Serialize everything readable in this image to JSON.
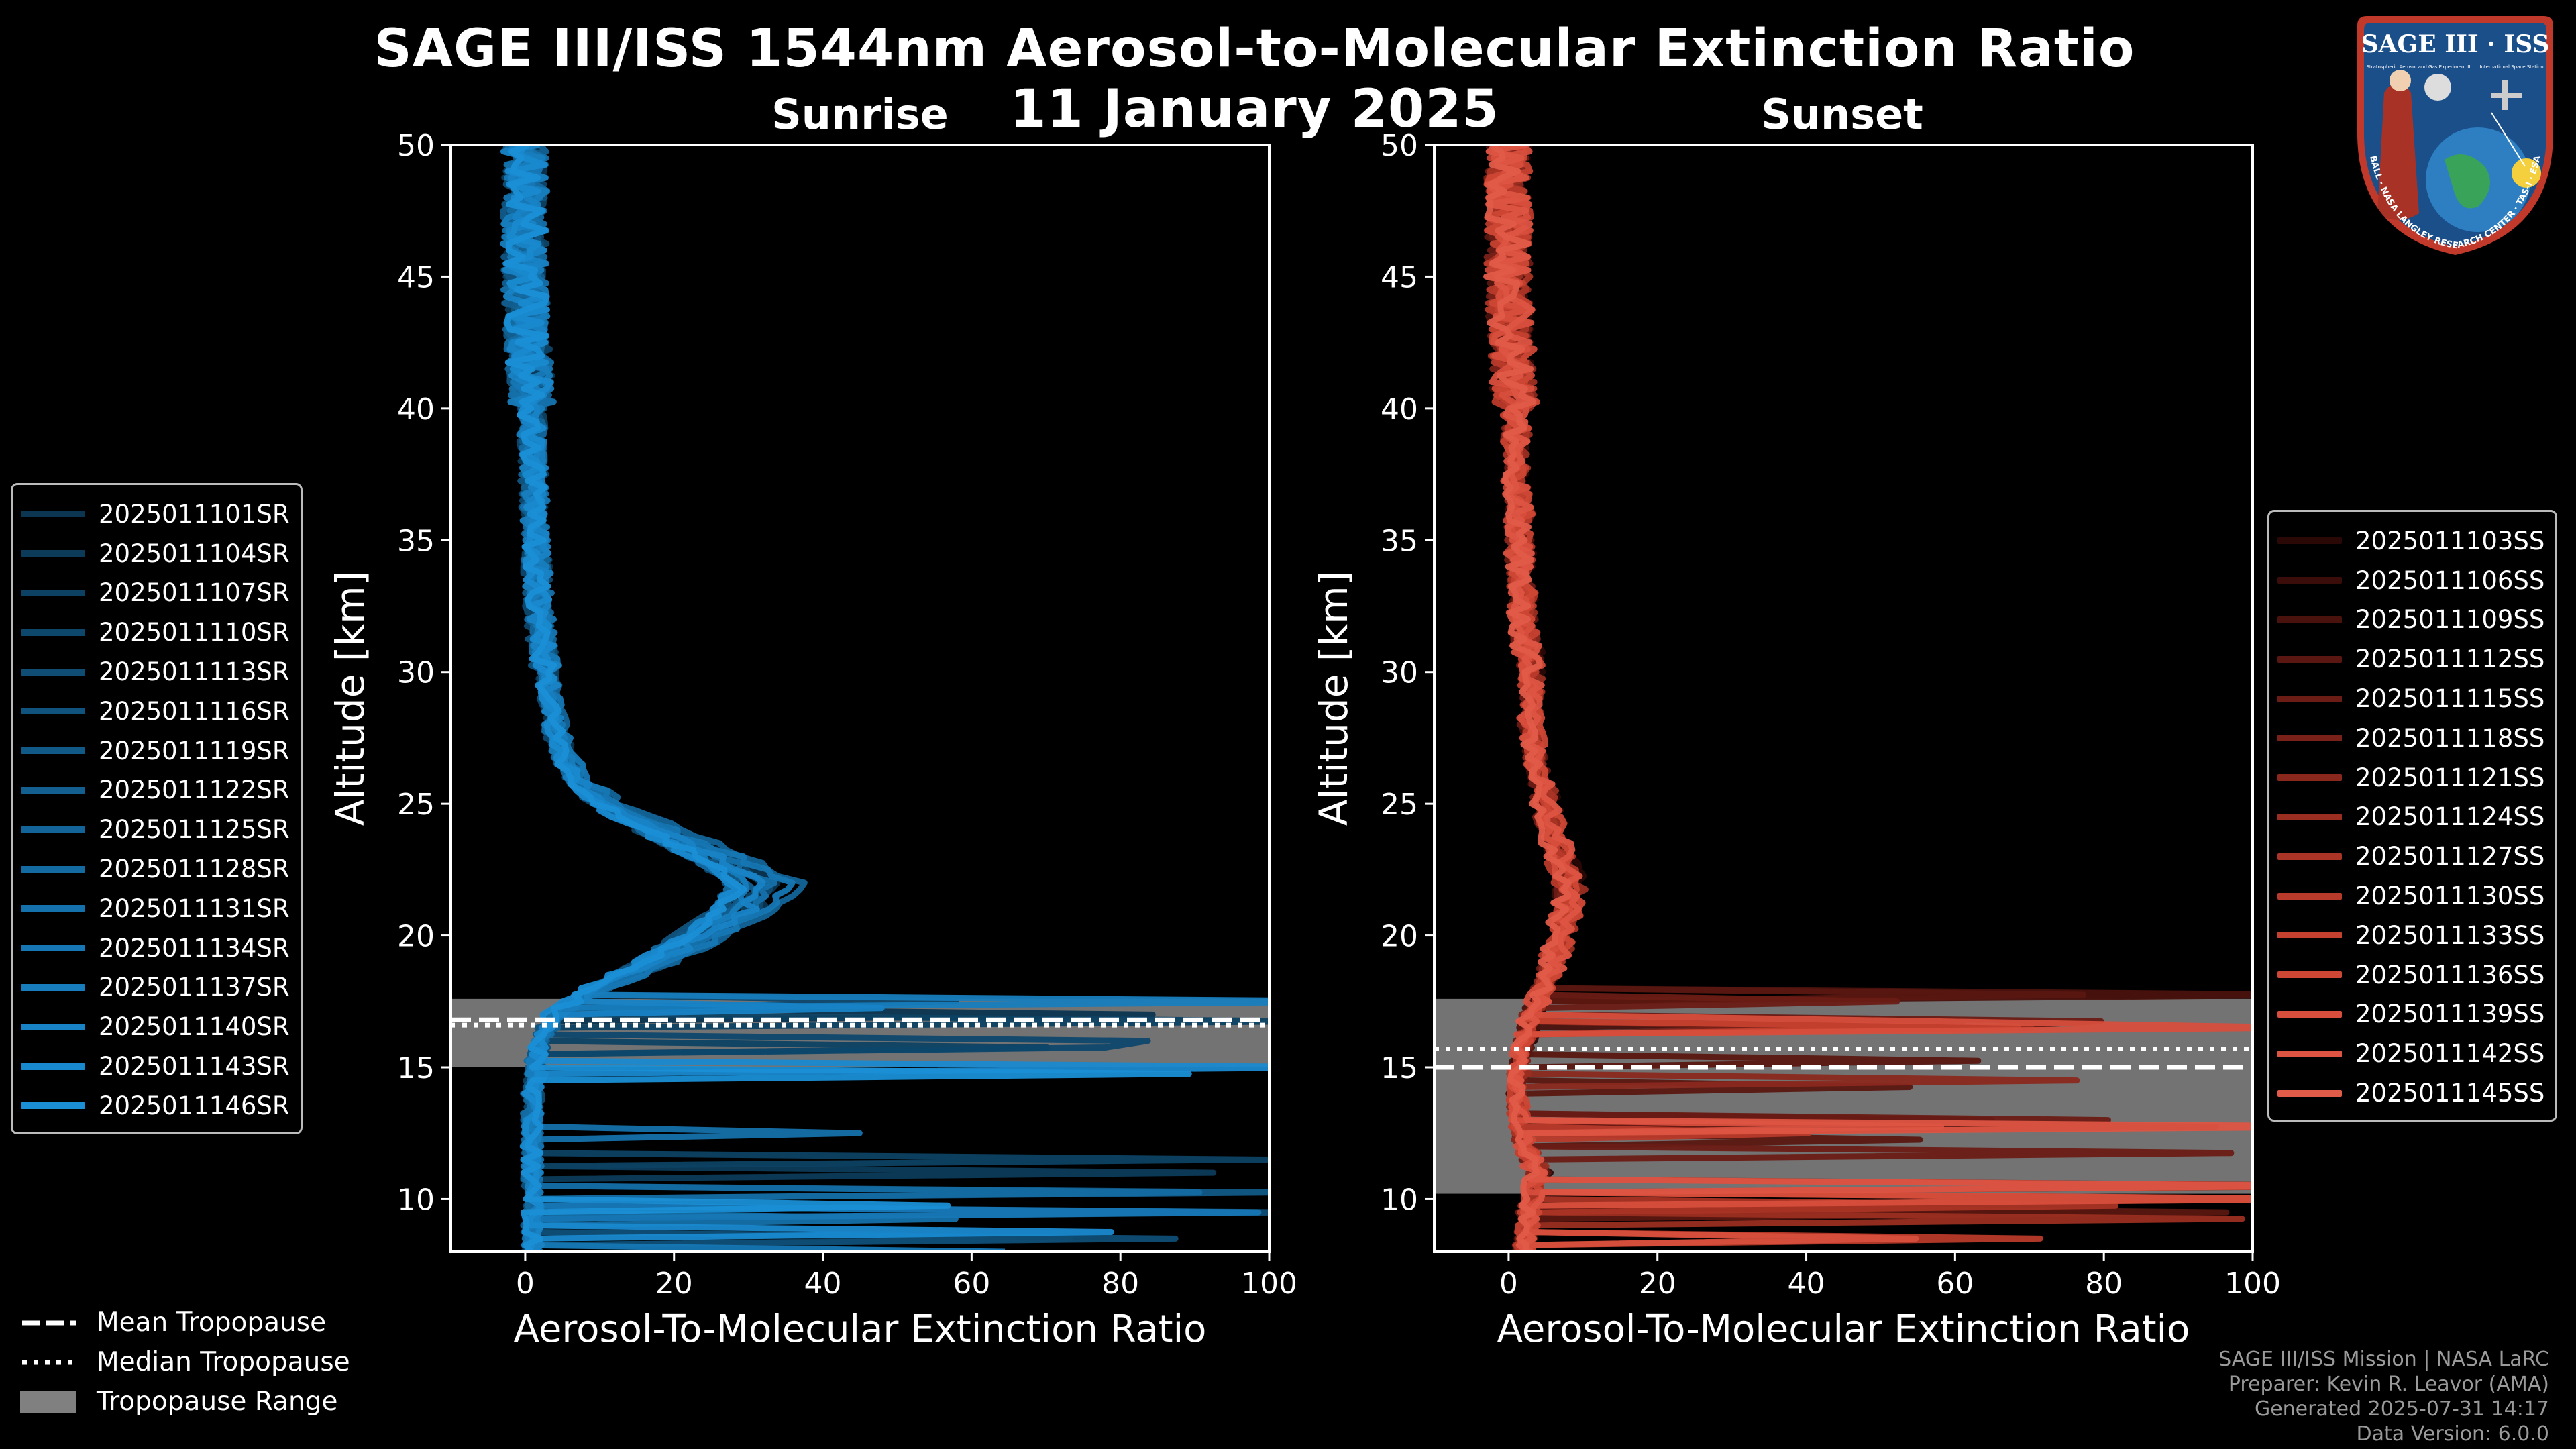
{
  "title": "SAGE III/ISS 1544nm Aerosol-to-Molecular Extinction Ratio",
  "date": "11 January 2025",
  "colors": {
    "sunrise": "#1a8fd6",
    "sunset": "#e05b48",
    "tropopause_range": "#808080",
    "background": "#000000"
  },
  "chart_data": [
    {
      "type": "line",
      "panel": "Sunrise",
      "title": "Sunrise",
      "xlabel": "Aerosol-To-Molecular Extinction Ratio",
      "ylabel": "Altitude [km]",
      "xlim": [
        -10,
        100
      ],
      "ylim": [
        8,
        50
      ],
      "xticks": [
        0,
        20,
        40,
        60,
        80,
        100
      ],
      "yticks": [
        10,
        15,
        20,
        25,
        30,
        35,
        40,
        45,
        50
      ],
      "tropopause": {
        "mean_km": 16.8,
        "median_km": 16.6,
        "range_km": [
          15.0,
          17.6
        ]
      },
      "median_profile": {
        "altitude_km": [
          8,
          10,
          12,
          14,
          16,
          17,
          18,
          19,
          20,
          21,
          22,
          23,
          24,
          25,
          26,
          27,
          28,
          30,
          32,
          35,
          38,
          40,
          42,
          45,
          48,
          50
        ],
        "ratio": [
          1,
          1,
          1,
          1,
          2,
          4,
          10,
          18,
          24,
          30,
          32,
          26,
          18,
          11,
          7,
          5,
          4,
          3,
          2,
          1.5,
          1,
          1,
          0.5,
          0,
          0,
          0
        ]
      },
      "legend": [
        "2025011101SR",
        "2025011104SR",
        "2025011107SR",
        "2025011110SR",
        "2025011113SR",
        "2025011116SR",
        "2025011119SR",
        "2025011122SR",
        "2025011125SR",
        "2025011128SR",
        "2025011131SR",
        "2025011134SR",
        "2025011137SR",
        "2025011140SR",
        "2025011143SR",
        "2025011146SR"
      ],
      "legend_colors": [
        "#0b3550",
        "#0c3b5a",
        "#0d4163",
        "#0e476c",
        "#0f4d75",
        "#10537e",
        "#115987",
        "#125f90",
        "#136599",
        "#146ba2",
        "#1571ab",
        "#1677b4",
        "#177dbd",
        "#1883c6",
        "#1989cf",
        "#1a8fd6"
      ]
    },
    {
      "type": "line",
      "panel": "Sunset",
      "title": "Sunset",
      "xlabel": "Aerosol-To-Molecular Extinction Ratio",
      "ylabel": "Altitude [km]",
      "xlim": [
        -10,
        100
      ],
      "ylim": [
        8,
        50
      ],
      "xticks": [
        0,
        20,
        40,
        60,
        80,
        100
      ],
      "yticks": [
        10,
        15,
        20,
        25,
        30,
        35,
        40,
        45,
        50
      ],
      "tropopause": {
        "mean_km": 15.0,
        "median_km": 15.7,
        "range_km": [
          10.2,
          17.6
        ]
      },
      "median_profile": {
        "altitude_km": [
          8,
          10,
          11,
          12,
          14,
          16,
          17,
          18,
          19,
          20,
          21,
          22,
          23,
          24,
          25,
          26,
          28,
          30,
          32,
          35,
          38,
          40,
          42,
          45,
          48,
          50
        ],
        "ratio": [
          2,
          3,
          4,
          2,
          1,
          2,
          3,
          5,
          6,
          7,
          8,
          8,
          7,
          6,
          5,
          4,
          3,
          3,
          2,
          1.5,
          1,
          1,
          0.5,
          0,
          0,
          0
        ]
      },
      "legend": [
        "2025011103SS",
        "2025011106SS",
        "2025011109SS",
        "2025011112SS",
        "2025011115SS",
        "2025011118SS",
        "2025011121SS",
        "2025011124SS",
        "2025011127SS",
        "2025011130SS",
        "2025011133SS",
        "2025011136SS",
        "2025011139SS",
        "2025011142SS",
        "2025011145SS"
      ],
      "legend_colors": [
        "#2a0806",
        "#3a0d0a",
        "#4a120d",
        "#5a1711",
        "#6a1c15",
        "#7a2219",
        "#8a281d",
        "#9a2e21",
        "#aa3425",
        "#b83a2a",
        "#c4402f",
        "#ce4735",
        "#d74e3c",
        "#dd5442",
        "#e05b48"
      ]
    }
  ],
  "tropopause_legend": {
    "mean": "Mean Tropopause",
    "median": "Median Tropopause",
    "range": "Tropopause Range"
  },
  "credits": {
    "line1": "SAGE III/ISS Mission | NASA LaRC",
    "line2": "Preparer: Kevin R. Leavor (AMA)",
    "line3": "Generated 2025-07-31 14:17",
    "line4": "Data Version: 6.0.0"
  },
  "badge": {
    "title": "SAGE III · ISS",
    "subtitle": "Stratospheric Aerosol and Gas Experiment III",
    "subtitle2": "International Space Station",
    "ring_text": "BALL · NASA LANGLEY RESEARCH CENTER · TAS-I · ESA"
  }
}
